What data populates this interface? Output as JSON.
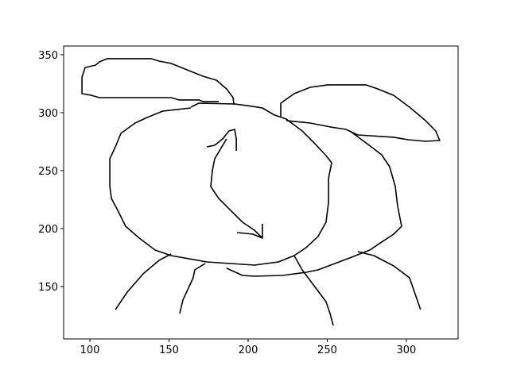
{
  "chart_data": {
    "type": "line",
    "color": "#000000",
    "xlim": [
      83.4,
      332.7
    ],
    "ylim": [
      104.8,
      357.5
    ],
    "xticks": [
      100,
      150,
      200,
      250,
      300
    ],
    "yticks": [
      150,
      200,
      250,
      300,
      350
    ],
    "grid": false,
    "series": [
      {
        "x": [
          181.4,
          171.4,
          168.8,
          156.3,
          151.3,
          106,
          101,
          95,
          95,
          97,
          103.5,
          106,
          111,
          138.7,
          143.7,
          151.3,
          161.3,
          171.4,
          180,
          186.4,
          190.5,
          191
        ],
        "y": [
          309.6,
          309.6,
          311,
          311,
          313,
          313,
          315,
          316.4,
          330.8,
          339,
          341,
          343.8,
          346.6,
          346.6,
          344.5,
          342.5,
          337,
          331.5,
          328,
          320.5,
          313,
          306.8
        ]
      },
      {
        "x": [
          163.8,
          168.8,
          191.5,
          199,
          209,
          216.6,
          224.1,
          234.2,
          241.7,
          249.2,
          252.8,
          251.8,
          250.8,
          250.8,
          249.2,
          244.2,
          236.7,
          229.1,
          219.1,
          204,
          173.9,
          151.3,
          141.2,
          131.2,
          122.6,
          117.6,
          113.6,
          112.6,
          112.6,
          116.1,
          119.6,
          128.6,
          136.2,
          146.2,
          163.8
        ],
        "y": [
          304.8,
          308.2,
          307.5,
          306.2,
          304.1,
          298,
          294.5,
          284.2,
          274,
          263,
          256.8,
          250,
          243.2,
          222.6,
          205.5,
          193.2,
          183.6,
          176.7,
          171.2,
          168.5,
          171.2,
          176.7,
          181.5,
          191.8,
          202,
          215.8,
          226,
          236.3,
          260.3,
          270.5,
          282.2,
          291.1,
          295.9,
          301.4,
          304.1
        ]
      },
      {
        "x": [
          220.6,
          220.6,
          229.1,
          239.2,
          250.3,
          274.4,
          281.9,
          292,
          302,
          312.1,
          318.6,
          321.1,
          312.1,
          301,
          292,
          269.3,
          261.8,
          251.8,
          239.2,
          224.1
        ],
        "y": [
          296.6,
          308.2,
          316.4,
          321.9,
          324,
          324,
          320.5,
          315,
          304.8,
          293.2,
          284.2,
          276,
          275.3,
          276.7,
          278.8,
          280.8,
          285.6,
          287.7,
          291.1,
          293.2
        ]
      },
      {
        "x": [
          264.3,
          274.4,
          284.4,
          289.4,
          293,
          294.5,
          297,
          292,
          284.4,
          276.9,
          264.3,
          244.2,
          236.7,
          221.6,
          204,
          196.5,
          186.4
        ],
        "y": [
          284.2,
          274,
          263.7,
          253.4,
          236.3,
          219.2,
          202,
          195.2,
          188.4,
          181.5,
          174.7,
          164.4,
          162.3,
          159.6,
          158.9,
          159.6,
          165.8
        ]
      },
      {
        "x": [
          116.1,
          123.6,
          133.7,
          143.7,
          151.3
        ],
        "y": [
          130.1,
          145.2,
          161,
          172.6,
          178.1
        ]
      },
      {
        "x": [
          156.8,
          158.8,
          165.3,
          166.3,
          172.9
        ],
        "y": [
          126.7,
          138.4,
          157.5,
          164.4,
          169.9
        ]
      },
      {
        "x": [
          229.1,
          234.2,
          241.7,
          249.2,
          251.8,
          253.8
        ],
        "y": [
          176.7,
          164.4,
          150.7,
          137,
          126.7,
          116.4
        ]
      },
      {
        "x": [
          269.3,
          279.4,
          292,
          302,
          305.5,
          309
        ],
        "y": [
          180.1,
          176.7,
          167.8,
          157.5,
          143.8,
          130.1
        ]
      },
      {
        "x": [
          173.9,
          178.9,
          183.9,
          187.9,
          191.5,
          192.5,
          192.5
        ],
        "y": [
          270.5,
          271.9,
          277.4,
          284.2,
          285.6,
          277.4,
          267.1
        ]
      },
      {
        "x": [
          186.4,
          178.9,
          177.4,
          176.4,
          181.4,
          188.9,
          196.5,
          204,
          209
        ],
        "y": [
          277.4,
          260.3,
          250,
          236.3,
          226,
          215.8,
          205.5,
          198.6,
          191.8
        ]
      },
      {
        "x": [
          193,
          203,
          209,
          209
        ],
        "y": [
          196.6,
          195.2,
          191.8,
          204.1
        ]
      }
    ]
  }
}
